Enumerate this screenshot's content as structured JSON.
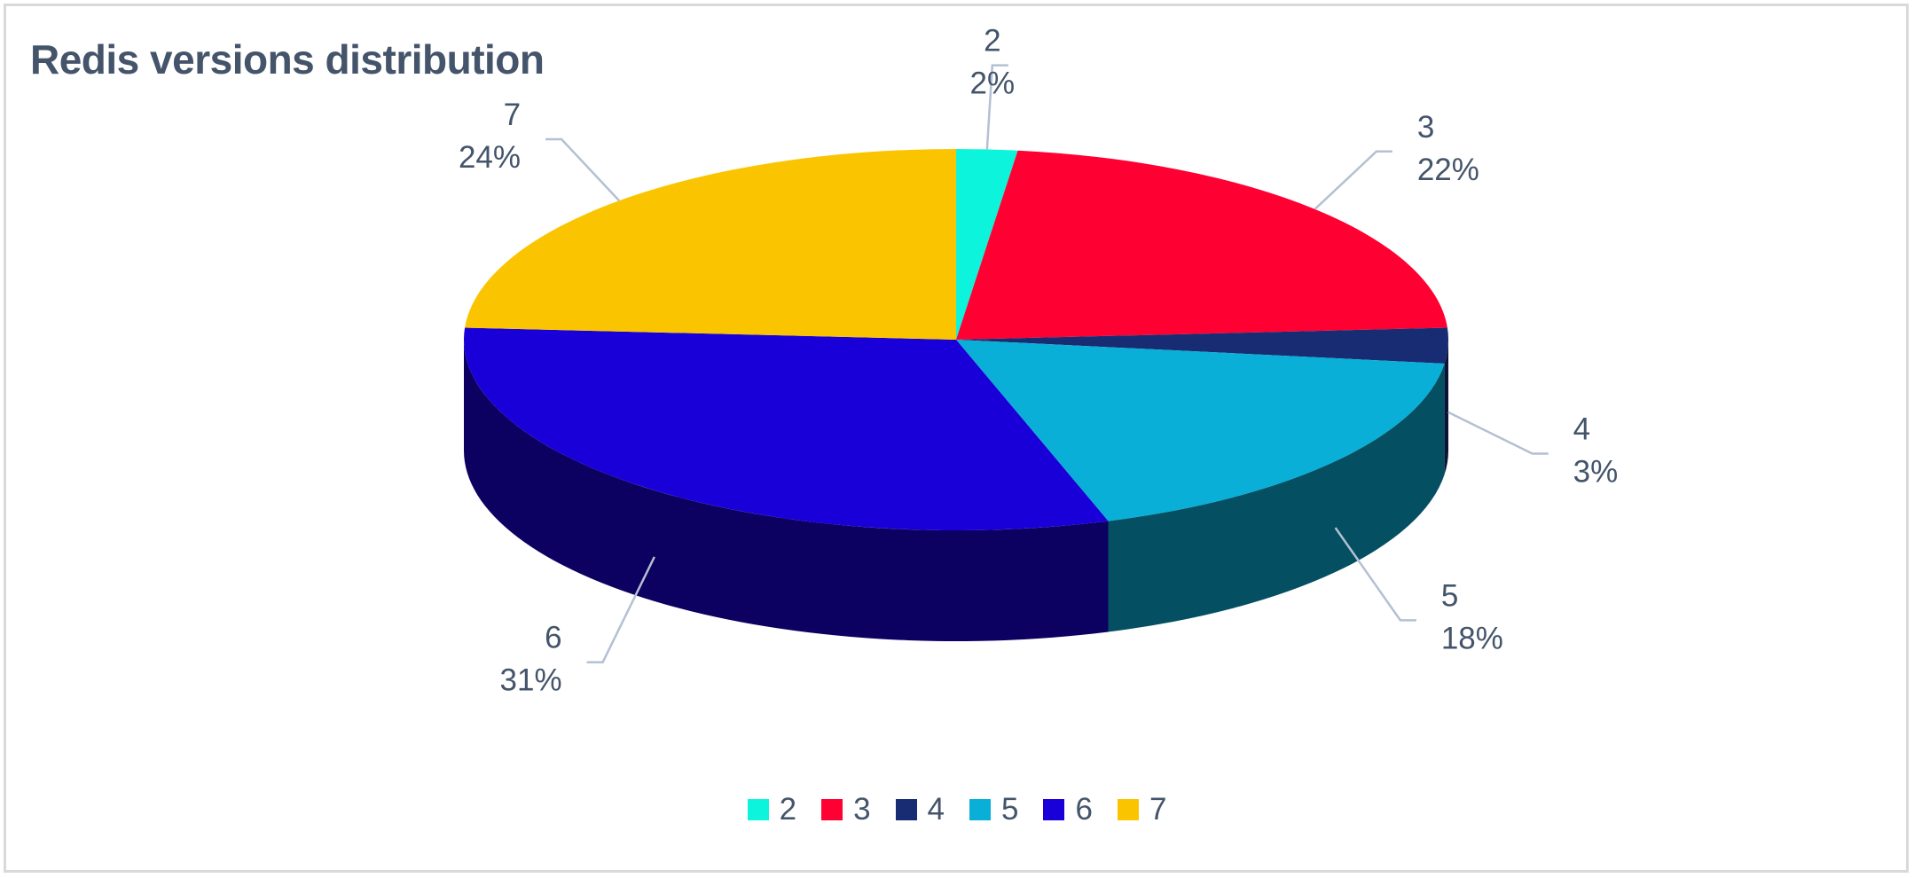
{
  "chart_data": {
    "type": "pie",
    "title": "Redis versions distribution",
    "legend_position": "bottom",
    "slices": [
      {
        "label": "2",
        "value": 2,
        "percent_label": "2%",
        "color": "#0cf5dc"
      },
      {
        "label": "3",
        "value": 22,
        "percent_label": "22%",
        "color": "#ff0033"
      },
      {
        "label": "4",
        "value": 3,
        "percent_label": "3%",
        "color": "#172c73"
      },
      {
        "label": "5",
        "value": 18,
        "percent_label": "18%",
        "color": "#09afd7"
      },
      {
        "label": "6",
        "value": 31,
        "percent_label": "31%",
        "color": "#1a00d8"
      },
      {
        "label": "7",
        "value": 24,
        "percent_label": "24%",
        "color": "#fac500"
      }
    ]
  }
}
